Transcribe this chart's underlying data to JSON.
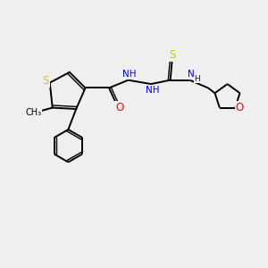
{
  "background_color": "#efefef",
  "atom_colors": {
    "S": "#cccc00",
    "N": "#0000ee",
    "O": "#ff0000",
    "C": "#000000"
  },
  "bond_color": "#000000",
  "figsize": [
    3.0,
    3.0
  ],
  "dpi": 100,
  "xlim": [
    0,
    10
  ],
  "ylim": [
    0,
    10
  ]
}
